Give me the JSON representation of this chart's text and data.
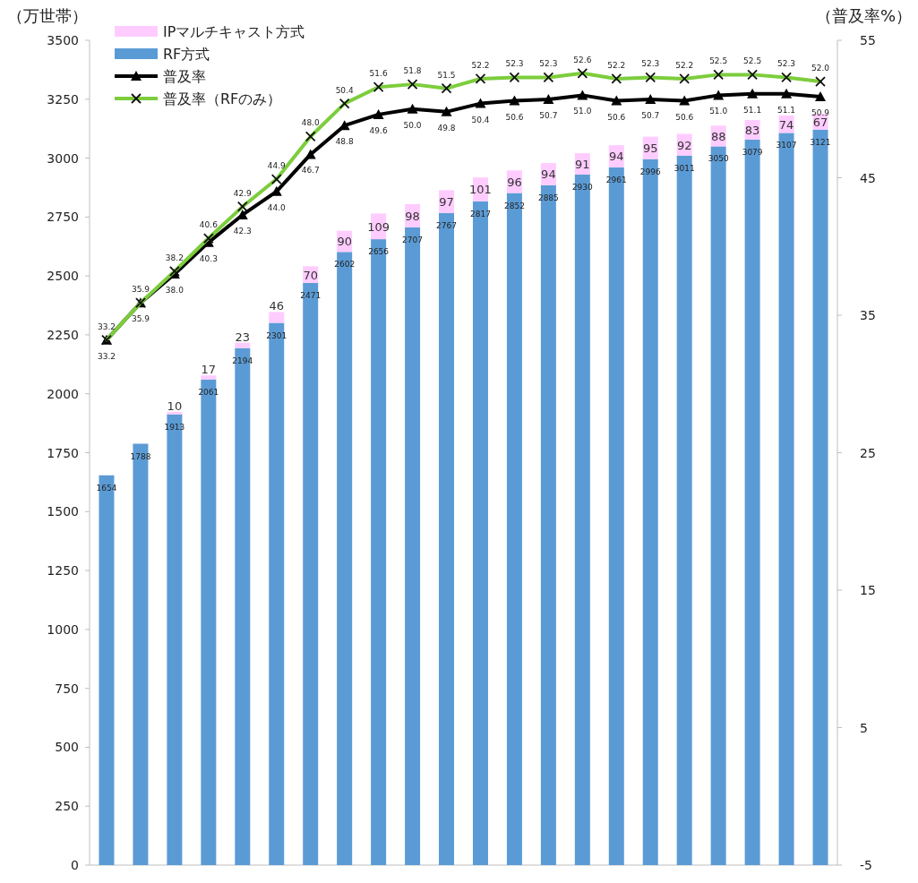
{
  "chart_data": {
    "type": "bar",
    "stacked": true,
    "ylabel": "（万世帯）",
    "y2label": "（普及率%）",
    "categories": [
      null,
      null,
      null,
      null,
      null,
      null,
      null,
      null,
      null,
      null,
      null,
      null,
      null,
      null,
      null,
      null,
      null,
      null,
      null,
      null,
      null,
      null
    ],
    "series": [
      {
        "name": "RF方式",
        "color": "#5b9bd5",
        "values": [
          1654,
          1788,
          1913,
          2061,
          2194,
          2301,
          2471,
          2602,
          2656,
          2707,
          2767,
          2817,
          2852,
          2885,
          2930,
          2961,
          2996,
          3011,
          3050,
          3079,
          3107,
          3121
        ]
      },
      {
        "name": "IPマルチキャスト方式",
        "color": "#ffccff",
        "values": [
          null,
          null,
          10,
          17,
          23,
          46,
          70,
          90,
          109,
          98,
          97,
          101,
          96,
          94,
          91,
          94,
          95,
          92,
          88,
          83,
          74,
          67
        ]
      },
      {
        "name": "普及率",
        "type": "line",
        "axis": "y2",
        "marker": "triangle",
        "color": "#000000",
        "values": [
          33.2,
          35.9,
          38.0,
          40.3,
          42.3,
          44.0,
          46.7,
          48.8,
          49.6,
          50.0,
          49.8,
          50.4,
          50.6,
          50.7,
          51.0,
          50.6,
          50.7,
          50.6,
          51.0,
          51.1,
          51.1,
          50.9
        ],
        "value_labels": [
          "33.2",
          "35.9",
          "38.0",
          "40.3",
          "42.3",
          "44.0",
          "46.7",
          "48.8",
          "49.6",
          "50.0",
          "49.8",
          "50.4",
          "50.6",
          "50.7",
          "51.0",
          "50.6",
          "50.7",
          "50.6",
          "51.0",
          "51.1",
          "51.1",
          "50.9"
        ]
      },
      {
        "name": "普及率（RFのみ）",
        "type": "line",
        "axis": "y2",
        "marker": "cross",
        "color": "#7ccd3c",
        "values": [
          33.2,
          35.9,
          38.2,
          40.6,
          42.9,
          44.9,
          48.0,
          50.4,
          51.6,
          51.8,
          51.5,
          52.2,
          52.3,
          52.3,
          52.6,
          52.2,
          52.3,
          52.2,
          52.5,
          52.5,
          52.3,
          52.0
        ],
        "value_labels": [
          "33.2",
          "35.9",
          "38.2",
          "40.6",
          "42.9",
          "44.9",
          "48.0",
          "50.4",
          "51.6",
          "51.8",
          "51.5",
          "52.2",
          "52.3",
          "52.3",
          "52.6",
          "52.2",
          "52.3",
          "52.2",
          "52.5",
          "52.5",
          "52.3",
          "52.0"
        ]
      }
    ],
    "ylim": [
      0,
      3500
    ],
    "yticks": [
      0,
      250,
      500,
      750,
      1000,
      1250,
      1500,
      1750,
      2000,
      2250,
      2500,
      2750,
      3000,
      3250,
      3500
    ],
    "y2lim": [
      -5,
      55
    ],
    "y2ticks": [
      -5,
      5,
      15,
      25,
      35,
      45,
      55
    ],
    "data_labels": true,
    "legend": "top left"
  }
}
